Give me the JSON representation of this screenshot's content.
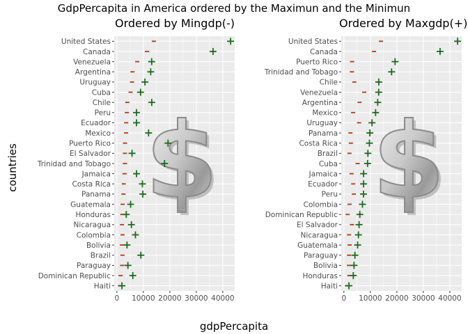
{
  "title": "GdpPercapita in America ordered by the Maximun and the Minimun",
  "xlabel": "gdpPercapita",
  "ylabel": "countries",
  "colors": {
    "panel_bg": "#ebebeb",
    "grid": "#ffffff",
    "min_marker": "#b23a16",
    "max_marker": "#1a6b1a",
    "tick_text": "#4d4d4d"
  },
  "chart_data": [
    {
      "type": "scatter",
      "title": "Ordered by Mingdp(-)",
      "xlim": [
        -1000,
        44500
      ],
      "xticks": [
        0,
        10000,
        20000,
        30000,
        40000
      ],
      "grid": true,
      "marker_min": "-",
      "marker_max": "+",
      "countries": [
        "United States",
        "Canada",
        "Venezuela",
        "Argentina",
        "Uruguay",
        "Cuba",
        "Chile",
        "Peru",
        "Ecuador",
        "Mexico",
        "Puerto Rico",
        "El Salvador",
        "Trinidad and Tobago",
        "Jamaica",
        "Costa Rica",
        "Panama",
        "Guatemala",
        "Honduras",
        "Nicaragua",
        "Colombia",
        "Bolivia",
        "Brazil",
        "Paraguay",
        "Dominican Republic",
        "Haiti"
      ],
      "min_gdp": [
        13990,
        11367,
        7690,
        5911,
        5716,
        5187,
        3939,
        3758,
        3522,
        3478,
        3082,
        3048,
        3024,
        2899,
        2627,
        2480,
        2173,
        2041,
        1928,
        2144,
        1896,
        2109,
        1952,
        1398,
        1202
      ],
      "max_gdp": [
        42952,
        36319,
        13144,
        12779,
        10611,
        8948,
        13172,
        7409,
        7429,
        11978,
        19328,
        5728,
        18009,
        7434,
        9645,
        9809,
        5187,
        3548,
        5487,
        7007,
        3822,
        9066,
        4173,
        6026,
        1908
      ]
    },
    {
      "type": "scatter",
      "title": "Ordered by Maxgdp(+)",
      "xlim": [
        -1000,
        44500
      ],
      "xticks": [
        0,
        10000,
        20000,
        30000,
        40000
      ],
      "grid": true,
      "marker_min": "-",
      "marker_max": "+",
      "countries": [
        "United States",
        "Canada",
        "Puerto Rico",
        "Trinidad and Tobago",
        "Chile",
        "Venezuela",
        "Argentina",
        "Mexico",
        "Uruguay",
        "Panama",
        "Costa Rica",
        "Brazil",
        "Cuba",
        "Jamaica",
        "Ecuador",
        "Peru",
        "Colombia",
        "Dominican Republic",
        "El Salvador",
        "Nicaragua",
        "Guatemala",
        "Paraguay",
        "Bolivia",
        "Honduras",
        "Haiti"
      ],
      "min_gdp": [
        13990,
        11367,
        3082,
        3024,
        3939,
        7690,
        5911,
        3478,
        5716,
        2480,
        2627,
        2109,
        5187,
        2899,
        3522,
        3758,
        2144,
        1398,
        3048,
        1928,
        2173,
        1952,
        1896,
        2041,
        1202
      ],
      "max_gdp": [
        42952,
        36319,
        19328,
        18009,
        13172,
        13144,
        12779,
        11978,
        10611,
        9809,
        9645,
        9066,
        8948,
        7434,
        7429,
        7409,
        7007,
        6026,
        5728,
        5487,
        5187,
        4173,
        3822,
        3548,
        1908
      ]
    }
  ]
}
